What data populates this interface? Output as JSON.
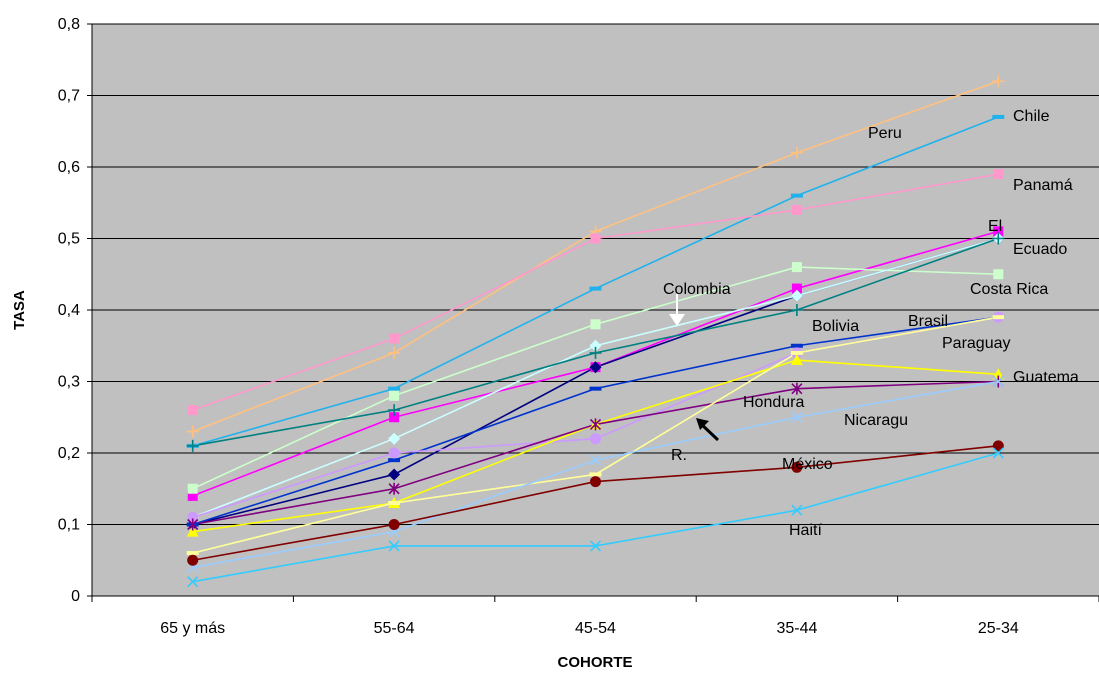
{
  "chart_data": {
    "type": "line",
    "xlabel": "COHORTE",
    "ylabel": "TASA",
    "categories": [
      "65 y más",
      "55-64",
      "45-54",
      "35-44",
      "25-34"
    ],
    "ylim": [
      0,
      0.8
    ],
    "yticks": [
      "0",
      "0,1",
      "0,2",
      "0,3",
      "0,4",
      "0,5",
      "0,6",
      "0,7",
      "0,8"
    ],
    "grid": true,
    "plot_background": "#c0c0c0",
    "series": [
      {
        "name": "Peru",
        "color": "#ffc080",
        "marker": "plus",
        "values": [
          0.23,
          0.34,
          0.51,
          0.62,
          0.72
        ]
      },
      {
        "name": "Chile",
        "color": "#1fb2ed",
        "marker": "dash",
        "values": [
          0.21,
          0.29,
          0.43,
          0.56,
          0.67
        ]
      },
      {
        "name": "Panamá",
        "color": "#ff99cc",
        "marker": "square",
        "values": [
          0.26,
          0.36,
          0.5,
          0.54,
          0.59
        ]
      },
      {
        "name": "El",
        "color": "#ff00ff",
        "marker": "square",
        "values": [
          0.14,
          0.25,
          0.32,
          0.43,
          0.51
        ]
      },
      {
        "name": "Ecuado",
        "color": "#000080",
        "marker": "diamond",
        "values": [
          0.1,
          0.17,
          0.32,
          0.42,
          0.5
        ]
      },
      {
        "name": "Costa Rica",
        "color": "#ccffcc",
        "marker": "square",
        "values": [
          0.15,
          0.28,
          0.38,
          0.46,
          0.45
        ]
      },
      {
        "name": "Colombia",
        "color": "#ccffff",
        "marker": "diamond",
        "values": [
          0.11,
          0.22,
          0.35,
          0.42,
          0.5
        ]
      },
      {
        "name": "Bolivia",
        "color": "#008080",
        "marker": "plus",
        "values": [
          0.21,
          0.26,
          0.34,
          0.4,
          0.5
        ]
      },
      {
        "name": "Brasil",
        "color": "#0033cc",
        "marker": "dash",
        "values": [
          0.1,
          0.19,
          0.29,
          0.35,
          0.39
        ]
      },
      {
        "name": "Paraguay",
        "color": "#cc99ff",
        "marker": "circle",
        "values": [
          0.11,
          0.2,
          0.22,
          0.34,
          0.39
        ]
      },
      {
        "name": "Guatema",
        "color": "#ffff00",
        "marker": "triangle",
        "values": [
          0.09,
          0.13,
          0.24,
          0.33,
          0.31
        ]
      },
      {
        "name": "Hondura",
        "color": "#800080",
        "marker": "star",
        "values": [
          0.1,
          0.15,
          0.24,
          0.29,
          0.3
        ]
      },
      {
        "name": "R.",
        "color": "#ffff99",
        "marker": "dash",
        "values": [
          0.06,
          0.13,
          0.17,
          0.34,
          0.39
        ]
      },
      {
        "name": "Nicaragu",
        "color": "#99ccff",
        "marker": "x",
        "values": [
          0.04,
          0.09,
          0.19,
          0.25,
          0.3
        ]
      },
      {
        "name": "México",
        "color": "#800000",
        "marker": "circle",
        "values": [
          0.05,
          0.1,
          0.16,
          0.18,
          0.21
        ]
      },
      {
        "name": "Haití",
        "color": "#33ccff",
        "marker": "x",
        "values": [
          0.02,
          0.07,
          0.07,
          0.12,
          0.2
        ]
      }
    ]
  }
}
